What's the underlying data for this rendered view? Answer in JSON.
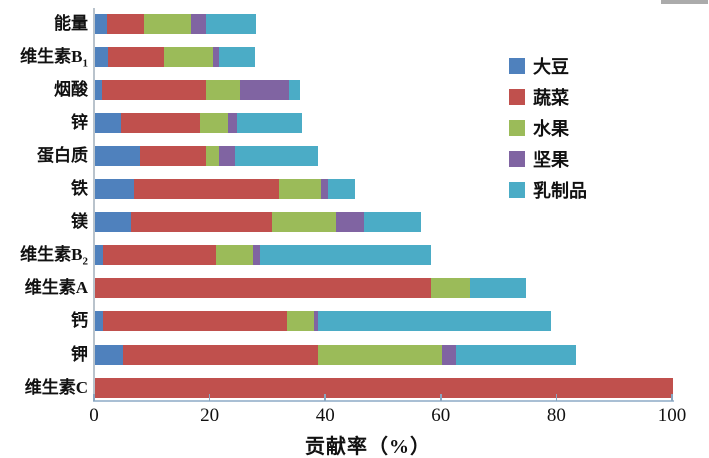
{
  "chart_data": {
    "type": "bar",
    "orientation": "horizontal",
    "stacked": true,
    "title": "",
    "xlabel": "贡献率（%）",
    "ylabel": "",
    "xlim": [
      0,
      100
    ],
    "xticks": [
      0,
      20,
      40,
      60,
      80,
      100
    ],
    "grid": false,
    "legend_position": "upper-right-inside",
    "categories": [
      {
        "label": "能量",
        "sub": ""
      },
      {
        "label": "维生素B",
        "sub": "1"
      },
      {
        "label": "烟酸",
        "sub": ""
      },
      {
        "label": "锌",
        "sub": ""
      },
      {
        "label": "蛋白质",
        "sub": ""
      },
      {
        "label": "铁",
        "sub": ""
      },
      {
        "label": "镁",
        "sub": ""
      },
      {
        "label": "维生素B",
        "sub": "2"
      },
      {
        "label": "维生素A",
        "sub": ""
      },
      {
        "label": "钙",
        "sub": ""
      },
      {
        "label": "钾",
        "sub": ""
      },
      {
        "label": "维生素C",
        "sub": ""
      }
    ],
    "series": [
      {
        "name": "大豆",
        "color": "#4F81BD",
        "values": [
          2.0,
          2.2,
          1.2,
          4.5,
          7.7,
          6.7,
          6.2,
          1.4,
          0,
          1.4,
          4.8,
          0
        ]
      },
      {
        "name": "蔬菜",
        "color": "#C0504D",
        "values": [
          6.5,
          9.7,
          18.0,
          13.7,
          11.5,
          25.1,
          24.4,
          19.5,
          58.1,
          31.8,
          33.7,
          100
        ]
      },
      {
        "name": "水果",
        "color": "#9BBB59",
        "values": [
          8.1,
          8.5,
          5.9,
          4.8,
          2.3,
          7.3,
          11.1,
          6.5,
          6.8,
          4.7,
          21.5,
          0
        ]
      },
      {
        "name": "坚果",
        "color": "#8064A2",
        "values": [
          2.6,
          1.1,
          8.5,
          1.6,
          2.7,
          1.2,
          4.9,
          1.2,
          0,
          0.7,
          2.5,
          0
        ]
      },
      {
        "name": "乳制品",
        "color": "#4BACC6",
        "values": [
          8.6,
          6.1,
          1.9,
          11.2,
          14.3,
          4.6,
          9.8,
          29.5,
          9.7,
          40.3,
          20.7,
          0
        ]
      }
    ],
    "totals_approx": [
      27.8,
      27.6,
      35.5,
      35.8,
      38.5,
      44.9,
      56.4,
      58.1,
      74.6,
      78.9,
      83.2,
      100
    ],
    "axis_color": "#a9bfd4",
    "artifact_color": "#ababab"
  }
}
